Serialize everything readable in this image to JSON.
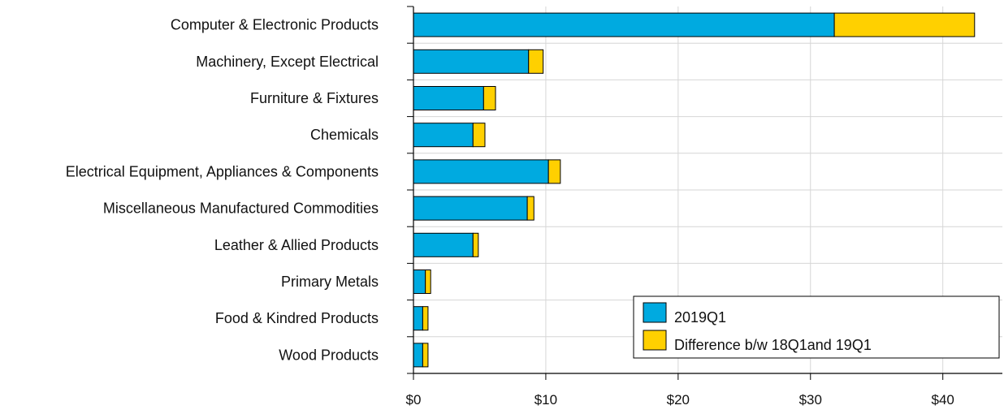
{
  "chart_data": {
    "type": "bar",
    "orientation": "horizontal",
    "stacked": true,
    "title": "",
    "xlabel": "",
    "ylabel": "",
    "categories": [
      "Computer & Electronic Products",
      "Machinery, Except Electrical",
      "Furniture & Fixtures",
      "Chemicals",
      "Electrical Equipment, Appliances & Components",
      "Miscellaneous Manufactured Commodities",
      "Leather & Allied Products",
      "Primary Metals",
      "Food & Kindred Products",
      "Wood Products"
    ],
    "series": [
      {
        "name": "2019Q1",
        "color": "#00aae0",
        "values": [
          31.8,
          8.7,
          5.3,
          4.5,
          10.2,
          8.6,
          4.5,
          0.9,
          0.7,
          0.7
        ]
      },
      {
        "name": "Difference b/w 18Q1and 19Q1",
        "color": "#ffd000",
        "values": [
          10.6,
          1.1,
          0.9,
          0.9,
          0.9,
          0.5,
          0.4,
          0.4,
          0.4,
          0.4
        ]
      }
    ],
    "xlim": [
      0,
      44.5
    ],
    "xticks": [
      0,
      10,
      20,
      30,
      40
    ],
    "xtick_labels": [
      "$0",
      "$10",
      "$20",
      "$30",
      "$40"
    ],
    "grid": true,
    "legend_position": "bottom-right"
  }
}
